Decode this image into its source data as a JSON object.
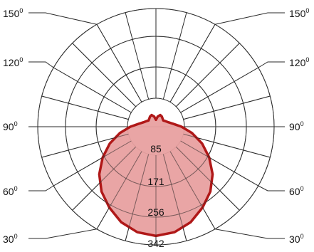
{
  "chart_data": {
    "type": "polar",
    "title": "",
    "angle_unit": "0",
    "angle_labels": {
      "left": [
        "150",
        "120",
        "90",
        "60",
        "30"
      ],
      "right": [
        "150",
        "120",
        "90",
        "60",
        "30"
      ]
    },
    "radial_ticks": [
      "85",
      "171",
      "256",
      "342"
    ],
    "radial_max": 342,
    "grid": true,
    "series": [
      {
        "color": "#b01818",
        "fill": "#e8a0a0",
        "angles_deg": [
          0,
          10,
          20,
          30,
          40,
          50,
          60,
          70,
          80,
          90,
          100,
          110,
          120,
          130,
          140,
          150,
          160,
          170,
          180
        ],
        "values": [
          316,
          310,
          294,
          270,
          245,
          214,
          178,
          142,
          106,
          74,
          50,
          38,
          32,
          28,
          30,
          34,
          36,
          30,
          20
        ]
      }
    ]
  }
}
